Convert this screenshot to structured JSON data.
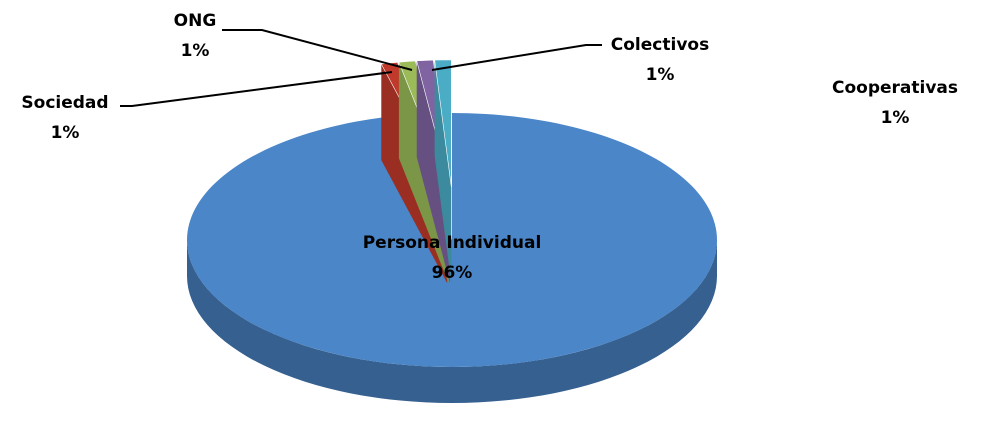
{
  "chart_data": {
    "type": "pie",
    "categories": [
      "Persona Individual",
      "Sociedad",
      "ONG",
      "Colectivos",
      "Cooperativas"
    ],
    "values": [
      96,
      1,
      1,
      1,
      1
    ],
    "value_labels": [
      "96%",
      "1%",
      "1%",
      "1%",
      "1%"
    ],
    "colors": [
      "#4a86c8",
      "#c0392b",
      "#9bbb59",
      "#8064a2",
      "#4bacc6"
    ]
  }
}
